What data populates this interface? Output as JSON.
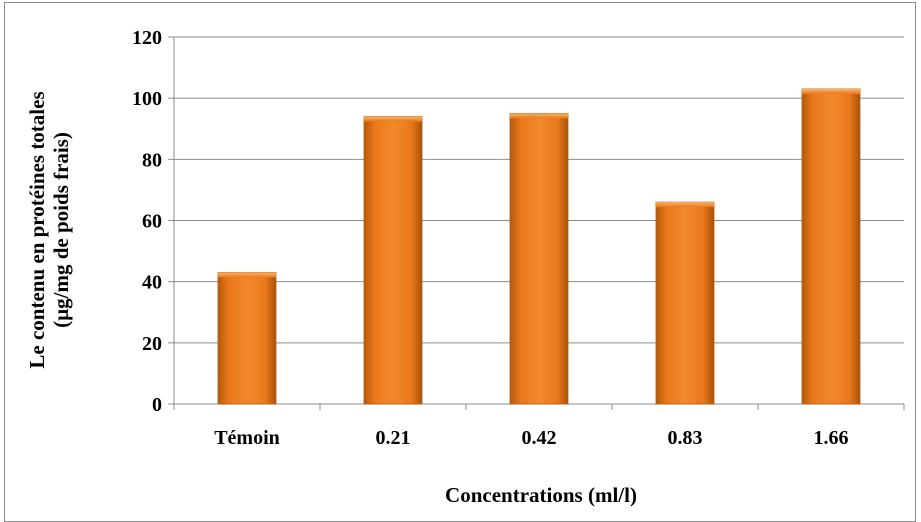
{
  "chart_data": {
    "type": "bar",
    "categories": [
      "Témoin",
      "0.21",
      "0.42",
      "0.83",
      "1.66"
    ],
    "values": [
      43,
      94,
      95,
      66,
      103
    ],
    "xlabel": "Concentrations (ml/l)",
    "ylabel_line1": "Le contenu en protéines totales",
    "ylabel_line2": "(µg/mg de poids frais)",
    "ylim": [
      0,
      120
    ],
    "yticks": [
      0,
      20,
      40,
      60,
      80,
      100,
      120
    ],
    "grid": true,
    "colors": {
      "bar": "#e8781a",
      "bar_light": "#f7a14a",
      "bar_dark": "#b45a0c",
      "grid": "#8c8c8c"
    }
  }
}
